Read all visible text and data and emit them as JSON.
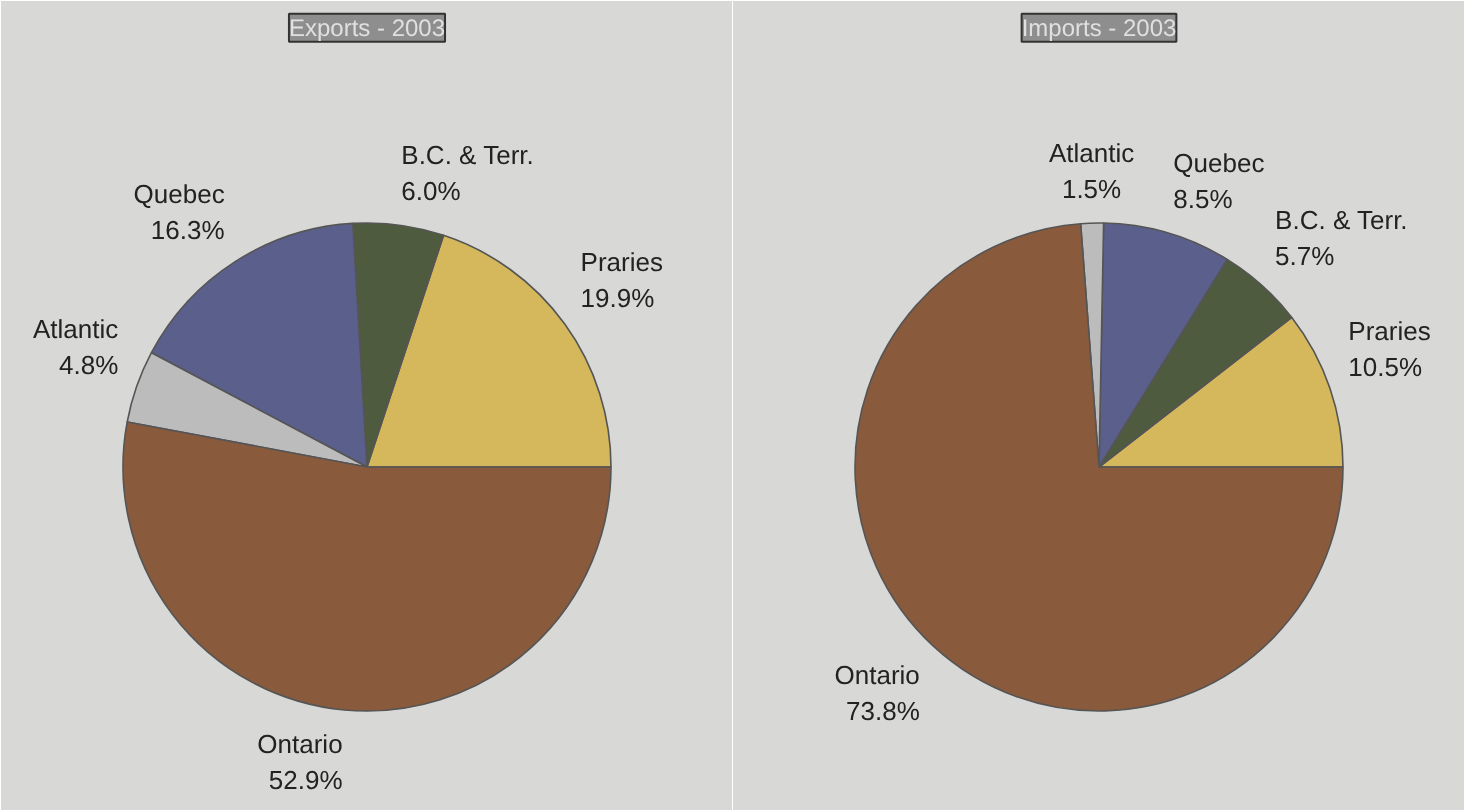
{
  "chart_data": [
    {
      "type": "pie",
      "title": "Exports - 2003",
      "categories": [
        "Praries",
        "B.C. & Terr.",
        "Quebec",
        "Atlantic",
        "Ontario"
      ],
      "values": [
        19.9,
        6.0,
        16.3,
        4.8,
        52.9
      ],
      "value_labels": [
        "19.9%",
        "6.0%",
        "16.3%",
        "4.8%",
        "52.9%"
      ],
      "colors": [
        "#d6b85c",
        "#4f5b3f",
        "#5b5f8c",
        "#bcbcbc",
        "#8a5a3d"
      ]
    },
    {
      "type": "pie",
      "title": "Imports - 2003",
      "categories": [
        "Praries",
        "B.C. & Terr.",
        "Quebec",
        "Atlantic",
        "Ontario"
      ],
      "values": [
        10.5,
        5.7,
        8.5,
        1.5,
        73.8
      ],
      "value_labels": [
        "10.5%",
        "5.7%",
        "8.5%",
        "1.5%",
        "73.8%"
      ],
      "colors": [
        "#d6b85c",
        "#4f5b3f",
        "#5b5f8c",
        "#bcbcbc",
        "#8a5a3d"
      ]
    }
  ]
}
